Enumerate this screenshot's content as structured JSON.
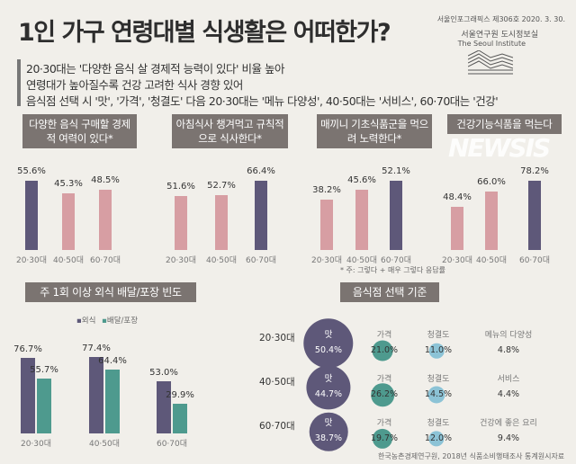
{
  "header": {
    "title": "1인 가구 연령대별 식생활은 어떠한가?",
    "issue": "서울인포그래픽스 제306호 2020. 3. 30.",
    "org": "서울연구원 도시정보실",
    "org_en": "The Seoul Institute"
  },
  "summary": [
    "20·30대는 '다양한 음식 살 경제적 능력이 있다' 비율 높아",
    "연령대가 높아질수록 건강 고려한 식사 경향 있어",
    "음식점 선택 시  '맛', '가격', '청결도' 다음 20·30대는 '메뉴 다양성', 40·50대는 '서비스', 60·70대는 '건강'"
  ],
  "colors": {
    "highlight": "#5e5879",
    "normal": "#d79ea3",
    "eat_out": "#5e5879",
    "delivery": "#4e9a8e",
    "price": "#4e9a8e",
    "clean": "#8cc3d6",
    "title_box": "#7b7471"
  },
  "chart_data": [
    {
      "type": "bar",
      "title": "다양한 음식 구매할 경제적 여력이 있다*",
      "categories": [
        "20·30대",
        "40·50대",
        "60·70대"
      ],
      "values": [
        55.6,
        45.3,
        48.5
      ],
      "labels": [
        "55.6%",
        "45.3%",
        "48.5%"
      ],
      "highlight": 0
    },
    {
      "type": "bar",
      "title": "아침식사 챙겨먹고 규칙적으로 식사한다*",
      "categories": [
        "20·30대",
        "40·50대",
        "60·70대"
      ],
      "values": [
        51.6,
        52.7,
        66.4
      ],
      "labels": [
        "51.6%",
        "52.7%",
        "66.4%"
      ],
      "highlight": 2
    },
    {
      "type": "bar",
      "title": "매끼니 기초식품군을 먹으려 노력한다*",
      "categories": [
        "20·30대",
        "40·50대",
        "60·70대"
      ],
      "values": [
        38.2,
        45.6,
        52.1
      ],
      "labels": [
        "38.2%",
        "45.6%",
        "52.1%"
      ],
      "highlight": 2
    },
    {
      "type": "bar",
      "title": "건강기능식품을 먹는다",
      "categories": [
        "20·30대",
        "40·50대",
        "60·70대"
      ],
      "values": [
        48.4,
        66.0,
        78.2
      ],
      "labels": [
        "48.4%",
        "66.0%",
        "78.2%"
      ],
      "highlight": 2
    },
    {
      "type": "bar",
      "title": "주 1회 이상 외식 배달/포장 빈도",
      "categories": [
        "20·30대",
        "40·50대",
        "60·70대"
      ],
      "legend": "top",
      "series": [
        {
          "name": "외식",
          "values": [
            76.7,
            77.4,
            53.0
          ],
          "labels": [
            "76.7%",
            "77.4%",
            "53.0%"
          ]
        },
        {
          "name": "배달/포장",
          "values": [
            55.7,
            64.4,
            29.9
          ],
          "labels": [
            "55.7%",
            "64.4%",
            "29.9%"
          ]
        }
      ]
    },
    {
      "type": "table",
      "title": "음식점 선택 기준",
      "rows": [
        {
          "age": "20·30대",
          "taste": {
            "label": "맛",
            "value": 50.4,
            "text": "50.4%"
          },
          "price": {
            "label": "가격",
            "value": 21.0,
            "text": "21.0%"
          },
          "clean": {
            "label": "청결도",
            "value": 11.0,
            "text": "11.0%"
          },
          "other": {
            "label": "메뉴의 다양성",
            "value": 4.8,
            "text": "4.8%"
          }
        },
        {
          "age": "40·50대",
          "taste": {
            "label": "맛",
            "value": 44.7,
            "text": "44.7%"
          },
          "price": {
            "label": "가격",
            "value": 26.2,
            "text": "26.2%"
          },
          "clean": {
            "label": "청결도",
            "value": 14.5,
            "text": "14.5%"
          },
          "other": {
            "label": "서비스",
            "value": 4.4,
            "text": "4.4%"
          }
        },
        {
          "age": "60·70대",
          "taste": {
            "label": "맛",
            "value": 38.7,
            "text": "38.7%"
          },
          "price": {
            "label": "가격",
            "value": 19.7,
            "text": "19.7%"
          },
          "clean": {
            "label": "청결도",
            "value": 12.0,
            "text": "12.0%"
          },
          "other": {
            "label": "건강에 좋은 요리",
            "value": 9.4,
            "text": "9.4%"
          }
        }
      ]
    }
  ],
  "footnote": "* 주: 그렇다 + 매우 그렇다 응답률",
  "source": "한국농촌경제연구원, 2018년 식품소비행태조사 통계원시자료",
  "watermark": "NEWSIS"
}
